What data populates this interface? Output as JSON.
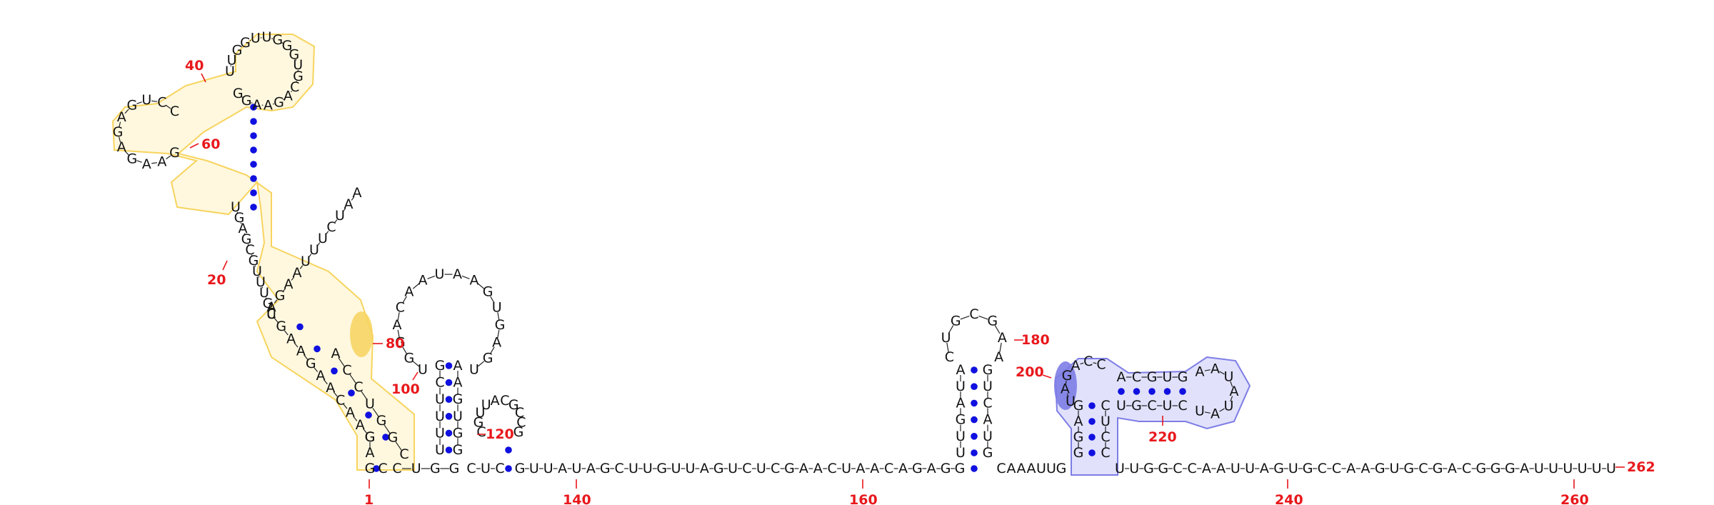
{
  "colors": {
    "highlight_yellow": "#f7d45e",
    "highlight_yellow_fill": "#fff3c4",
    "highlight_blue": "#7d7de6",
    "highlight_blue_fill": "#d9d9fb",
    "pair_dot": "#1010e0",
    "numbers": "#e8181c",
    "nucleotide": "#111111"
  },
  "position_labels": [
    {
      "id": "n1",
      "text": "1"
    },
    {
      "id": "n20",
      "text": "20"
    },
    {
      "id": "n40",
      "text": "40"
    },
    {
      "id": "n60",
      "text": "60"
    },
    {
      "id": "n80",
      "text": "80"
    },
    {
      "id": "n100",
      "text": "100"
    },
    {
      "id": "n120",
      "text": "120"
    },
    {
      "id": "n140",
      "text": "140"
    },
    {
      "id": "n160",
      "text": "160"
    },
    {
      "id": "n180",
      "text": "180"
    },
    {
      "id": "n200",
      "text": "200"
    },
    {
      "id": "n220",
      "text": "220"
    },
    {
      "id": "n240",
      "text": "240"
    },
    {
      "id": "n260",
      "text": "260"
    },
    {
      "id": "n262",
      "text": "262"
    }
  ],
  "nucleotides": {
    "stem1_left": "GAACAAGAAGU",
    "stem1_right_tail": "CGGUCCA",
    "top_domain_left": "CGUUUGCGAGU",
    "top_domain_inner": "AAUCUUUAAGA",
    "top_domain_loop": "GAAGAGAGUCC",
    "hairpin_top": "UUGGUUGGGUGCAGAAGG",
    "hairpin_right_stem": "CACACAGCAUUGGUCGAC",
    "h1_loop": "UGGACAAUAAGUGAGU",
    "h1_stem_left": "UUUUCG",
    "h1_stem_right": "AAGUGG",
    "h2": "CGUUACGCCG",
    "linker_before": "CUGG",
    "linker_mid": "CUC",
    "linker_1": "GUUAUAGCUUGUUAGUCUCGAACUAACAGAGG",
    "h3_stem_left": "UUGAUA",
    "h3_loop": "CUGCGAA",
    "h3_stem_right": "GUCAUG",
    "linker_2": "CAAAUUG",
    "h4_left": "GAGG",
    "h4_top_left": "UAGACC",
    "h4_top_right": "ACGUG",
    "h4_loop": "AAUAUAU",
    "h4_bottom": "CUCGU",
    "h4_right": "CCUC",
    "tail": "UUGGCCAAUUAGUGCCAAGUGCGACGGGAUUUUUU"
  }
}
